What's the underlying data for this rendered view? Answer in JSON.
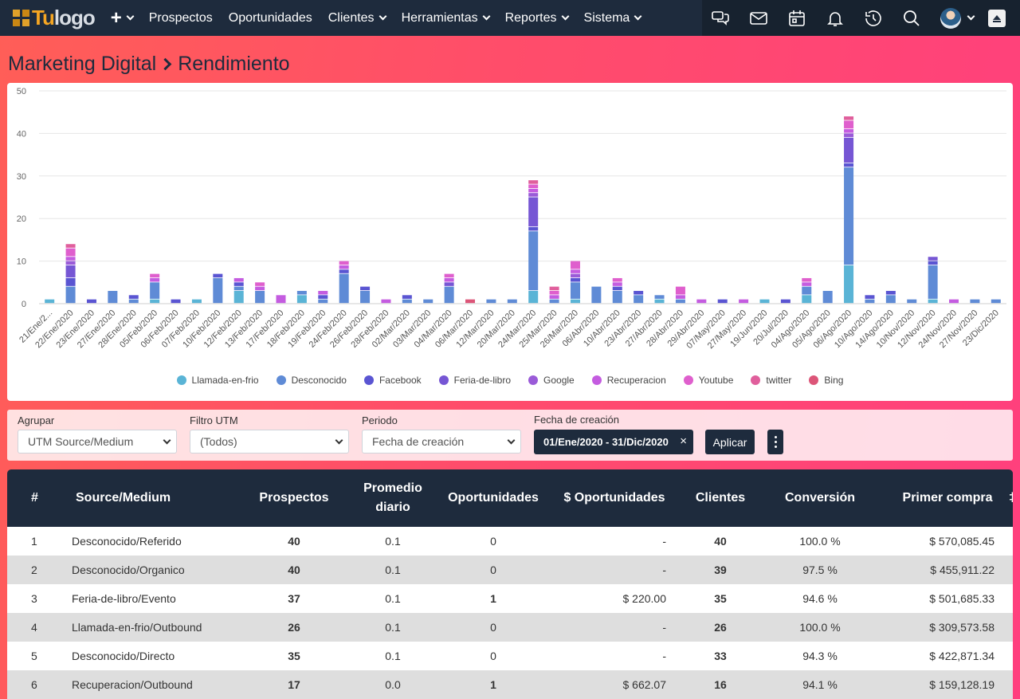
{
  "navbar": {
    "logo_tu": "Tu",
    "logo_text": "logo",
    "plus_label": "+",
    "items": [
      {
        "label": "Prospectos",
        "dropdown": false
      },
      {
        "label": "Oportunidades",
        "dropdown": false
      },
      {
        "label": "Clientes",
        "dropdown": true
      },
      {
        "label": "Herramientas",
        "dropdown": true
      },
      {
        "label": "Reportes",
        "dropdown": true
      },
      {
        "label": "Sistema",
        "dropdown": true
      }
    ],
    "right_icons": [
      "chat-icon",
      "mail-icon",
      "calendar-icon",
      "bell-icon",
      "history-icon",
      "search-icon"
    ]
  },
  "page": {
    "breadcrumb_parent": "Marketing Digital",
    "breadcrumb_current": "Rendimiento"
  },
  "chart_data": {
    "type": "bar",
    "stacked": true,
    "ylim": [
      0,
      50
    ],
    "yticks": [
      0,
      10,
      20,
      30,
      40,
      50
    ],
    "grid": true,
    "legend_position": "bottom",
    "categories": [
      "21/Ene/2...",
      "22/Ene/2020",
      "23/Ene/2020",
      "27/Ene/2020",
      "28/Ene/2020",
      "05/Feb/2020",
      "06/Feb/2020",
      "07/Feb/2020",
      "10/Feb/2020",
      "12/Feb/2020",
      "13/Feb/2020",
      "17/Feb/2020",
      "18/Feb/2020",
      "19/Feb/2020",
      "24/Feb/2020",
      "26/Feb/2020",
      "28/Feb/2020",
      "02/Mar/2020",
      "03/Mar/2020",
      "04/Mar/2020",
      "06/Mar/2020",
      "12/Mar/2020",
      "20/Mar/2020",
      "24/Mar/2020",
      "25/Mar/2020",
      "26/Mar/2020",
      "06/Abr/2020",
      "10/Abr/2020",
      "23/Abr/2020",
      "27/Abr/2020",
      "28/Abr/2020",
      "29/Abr/2020",
      "07/May/2020",
      "27/May/2020",
      "19/Jun/2020",
      "20/Jul/2020",
      "04/Ago/2020",
      "05/Ago/2020",
      "06/Ago/2020",
      "10/Ago/2020",
      "14/Ago/2020",
      "10/Nov/2020",
      "12/Nov/2020",
      "24/Nov/2020",
      "27/Nov/2020",
      "23/Dic/2020"
    ],
    "series": [
      {
        "name": "Llamada-en-frio",
        "color": "#5ab4d6",
        "values": [
          1,
          0,
          0,
          0,
          0,
          1,
          0,
          1,
          0,
          3,
          0,
          0,
          2,
          0,
          0,
          0,
          0,
          0,
          0,
          0,
          0,
          0,
          0,
          3,
          0,
          1,
          0,
          0,
          0,
          1,
          0,
          0,
          0,
          0,
          1,
          0,
          2,
          0,
          9,
          0,
          0,
          0,
          1,
          0,
          0,
          0
        ]
      },
      {
        "name": "Desconocido",
        "color": "#5f8bd6",
        "values": [
          0,
          4,
          0,
          3,
          1,
          4,
          0,
          0,
          6,
          1,
          3,
          0,
          1,
          1,
          7,
          3,
          0,
          1,
          1,
          4,
          0,
          1,
          1,
          14,
          1,
          4,
          4,
          3,
          2,
          1,
          1,
          0,
          0,
          0,
          0,
          0,
          2,
          3,
          23,
          1,
          2,
          1,
          8,
          0,
          1,
          1
        ]
      },
      {
        "name": "Facebook",
        "color": "#5a55d2",
        "values": [
          0,
          2,
          1,
          0,
          1,
          0,
          1,
          0,
          1,
          1,
          0,
          0,
          0,
          1,
          1,
          1,
          0,
          1,
          0,
          0,
          0,
          0,
          0,
          1,
          0,
          1,
          0,
          1,
          1,
          0,
          0,
          0,
          1,
          0,
          0,
          1,
          0,
          0,
          1,
          1,
          1,
          0,
          1,
          0,
          0,
          0
        ]
      },
      {
        "name": "Feria-de-libro",
        "color": "#7656d4",
        "values": [
          0,
          3,
          0,
          0,
          0,
          0,
          0,
          0,
          0,
          0,
          0,
          0,
          0,
          0,
          0,
          0,
          0,
          0,
          0,
          1,
          0,
          0,
          0,
          7,
          0,
          0,
          0,
          0,
          0,
          0,
          0,
          0,
          0,
          0,
          0,
          0,
          0,
          0,
          6,
          0,
          0,
          0,
          1,
          0,
          0,
          0
        ]
      },
      {
        "name": "Google",
        "color": "#9a5bd8",
        "values": [
          0,
          1,
          0,
          0,
          0,
          0,
          0,
          0,
          0,
          0,
          0,
          0,
          0,
          0,
          0,
          0,
          0,
          0,
          0,
          0,
          0,
          0,
          0,
          1,
          0,
          1,
          0,
          0,
          0,
          0,
          0,
          0,
          0,
          0,
          0,
          0,
          0,
          0,
          1,
          0,
          0,
          0,
          0,
          0,
          0,
          0
        ]
      },
      {
        "name": "Recuperacion",
        "color": "#c45ce0",
        "values": [
          0,
          1,
          0,
          0,
          0,
          1,
          0,
          0,
          0,
          1,
          1,
          2,
          0,
          1,
          1,
          0,
          1,
          0,
          0,
          1,
          0,
          0,
          0,
          1,
          1,
          1,
          0,
          1,
          0,
          0,
          1,
          1,
          0,
          1,
          0,
          0,
          1,
          0,
          1,
          0,
          0,
          0,
          0,
          1,
          0,
          0
        ]
      },
      {
        "name": "Youtube",
        "color": "#df5fcd",
        "values": [
          0,
          2,
          0,
          0,
          0,
          1,
          0,
          0,
          0,
          0,
          1,
          0,
          0,
          0,
          1,
          0,
          0,
          0,
          0,
          1,
          0,
          0,
          0,
          1,
          1,
          2,
          0,
          1,
          0,
          0,
          2,
          0,
          0,
          0,
          0,
          0,
          1,
          0,
          2,
          0,
          0,
          0,
          0,
          0,
          0,
          0
        ]
      },
      {
        "name": "twitter",
        "color": "#e05f9c",
        "values": [
          0,
          1,
          0,
          0,
          0,
          0,
          0,
          0,
          0,
          0,
          0,
          0,
          0,
          0,
          0,
          0,
          0,
          0,
          0,
          0,
          0,
          0,
          0,
          1,
          1,
          0,
          0,
          0,
          0,
          0,
          0,
          0,
          0,
          0,
          0,
          0,
          0,
          0,
          1,
          0,
          0,
          0,
          0,
          0,
          0,
          0
        ]
      },
      {
        "name": "Bing",
        "color": "#dc5578",
        "values": [
          0,
          0,
          0,
          0,
          0,
          0,
          0,
          0,
          0,
          0,
          0,
          0,
          0,
          0,
          0,
          0,
          0,
          0,
          0,
          0,
          1,
          0,
          0,
          0,
          0,
          0,
          0,
          0,
          0,
          0,
          0,
          0,
          0,
          0,
          0,
          0,
          0,
          0,
          0,
          0,
          0,
          0,
          0,
          0,
          0,
          0
        ]
      }
    ]
  },
  "filters": {
    "group_label": "Agrupar",
    "group_value": "UTM Source/Medium",
    "utm_label": "Filtro UTM",
    "utm_value": "(Todos)",
    "period_label": "Periodo",
    "period_value": "Fecha de creación",
    "date_label": "Fecha de creación",
    "date_value": "01/Ene/2020 - 31/Dic/2020",
    "clear_symbol": "×",
    "apply_label": "Aplicar"
  },
  "table": {
    "headers": {
      "num": "#",
      "source": "Source/Medium",
      "prospects": "Prospectos",
      "daily_1": "Promedio",
      "daily_2": "diario",
      "opps": "Oportunidades",
      "opps_amount": "$ Oportunidades",
      "clients": "Clientes",
      "conversion": "Conversión",
      "first_purchase": "Primer compra"
    },
    "rows": [
      {
        "num": "1",
        "source": "Desconocido/Referido",
        "prospects": "40",
        "daily": "0.1",
        "opps": "0",
        "opps_amount": "-",
        "clients": "40",
        "conversion": "100.0 %",
        "first_purchase": "$ 570,085.45"
      },
      {
        "num": "2",
        "source": "Desconocido/Organico",
        "prospects": "40",
        "daily": "0.1",
        "opps": "0",
        "opps_amount": "-",
        "clients": "39",
        "conversion": "97.5 %",
        "first_purchase": "$ 455,911.22"
      },
      {
        "num": "3",
        "source": "Feria-de-libro/Evento",
        "prospects": "37",
        "daily": "0.1",
        "opps": "1",
        "opps_amount": "$ 220.00",
        "clients": "35",
        "conversion": "94.6 %",
        "first_purchase": "$ 501,685.33"
      },
      {
        "num": "4",
        "source": "Llamada-en-frio/Outbound",
        "prospects": "26",
        "daily": "0.1",
        "opps": "0",
        "opps_amount": "-",
        "clients": "26",
        "conversion": "100.0 %",
        "first_purchase": "$ 309,573.58"
      },
      {
        "num": "5",
        "source": "Desconocido/Directo",
        "prospects": "35",
        "daily": "0.1",
        "opps": "0",
        "opps_amount": "-",
        "clients": "33",
        "conversion": "94.3 %",
        "first_purchase": "$ 422,871.34"
      },
      {
        "num": "6",
        "source": "Recuperacion/Outbound",
        "prospects": "17",
        "daily": "0.0",
        "opps": "1",
        "opps_amount": "$ 662.07",
        "clients": "16",
        "conversion": "94.1 %",
        "first_purchase": "$ 159,128.19"
      }
    ]
  }
}
